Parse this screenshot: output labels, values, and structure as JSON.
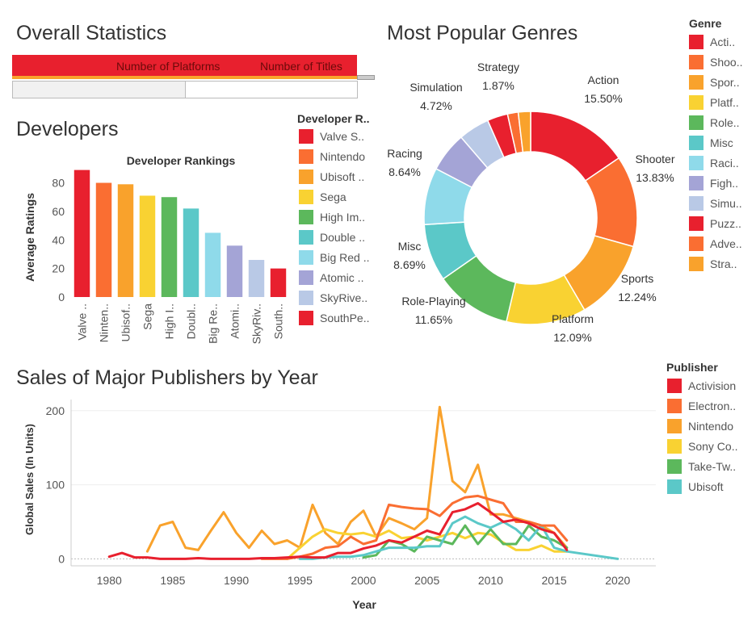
{
  "overall": {
    "title": "Overall Statistics",
    "col_platforms": "Number of Platforms",
    "col_titles": "Number of Titles"
  },
  "developers": {
    "title": "Developers",
    "legend_title": "Developer R..",
    "legend": [
      {
        "label": "Valve S..",
        "color": "#e8202e"
      },
      {
        "label": "Nintendo",
        "color": "#fa6e32"
      },
      {
        "label": "Ubisoft ..",
        "color": "#f9a22c"
      },
      {
        "label": "Sega",
        "color": "#f9d232"
      },
      {
        "label": "High Im..",
        "color": "#5cb85c"
      },
      {
        "label": "Double ..",
        "color": "#5bc8c8"
      },
      {
        "label": "Big Red ..",
        "color": "#8fdaea"
      },
      {
        "label": "Atomic ..",
        "color": "#a4a4d6"
      },
      {
        "label": "SkyRive..",
        "color": "#b9c9e6"
      },
      {
        "label": "SouthPe..",
        "color": "#e8202e"
      }
    ]
  },
  "genres": {
    "title": "Most Popular Genres",
    "legend_title": "Genre",
    "legend": [
      {
        "label": "Acti..",
        "color": "#e8202e"
      },
      {
        "label": "Shoo..",
        "color": "#fa6e32"
      },
      {
        "label": "Spor..",
        "color": "#f9a22c"
      },
      {
        "label": "Platf..",
        "color": "#f9d232"
      },
      {
        "label": "Role..",
        "color": "#5cb85c"
      },
      {
        "label": "Misc",
        "color": "#5bc8c8"
      },
      {
        "label": "Raci..",
        "color": "#8fdaea"
      },
      {
        "label": "Figh..",
        "color": "#a4a4d6"
      },
      {
        "label": "Simu..",
        "color": "#b9c9e6"
      },
      {
        "label": "Puzz..",
        "color": "#e8202e"
      },
      {
        "label": "Adve..",
        "color": "#fa6e32"
      },
      {
        "label": "Stra..",
        "color": "#f9a22c"
      }
    ]
  },
  "publishers": {
    "title": "Sales of Major Publishers by Year",
    "legend_title": "Publisher",
    "legend": [
      {
        "label": "Activision",
        "color": "#e8202e"
      },
      {
        "label": "Electron..",
        "color": "#fa6e32"
      },
      {
        "label": "Nintendo",
        "color": "#f9a22c"
      },
      {
        "label": "Sony Co..",
        "color": "#f9d232"
      },
      {
        "label": "Take-Tw..",
        "color": "#5cb85c"
      },
      {
        "label": "Ubisoft",
        "color": "#5bc8c8"
      }
    ]
  },
  "chart_data": [
    {
      "type": "bar",
      "title": "Developer Rankings",
      "ylabel": "Average Ratings",
      "xlabel": "",
      "ylim": [
        0,
        95
      ],
      "yticks": [
        0,
        20,
        40,
        60,
        80
      ],
      "categories": [
        "Valve ..",
        "Ninten..",
        "Ubisof..",
        "Sega",
        "High I..",
        "Doubl..",
        "Big Re..",
        "Atomi..",
        "SkyRiv..",
        "South.."
      ],
      "values": [
        89,
        80,
        79,
        71,
        70,
        62,
        45,
        36,
        26,
        20
      ],
      "colors": [
        "#e8202e",
        "#fa6e32",
        "#f9a22c",
        "#f9d232",
        "#5cb85c",
        "#5bc8c8",
        "#8fdaea",
        "#a4a4d6",
        "#b9c9e6",
        "#e8202e"
      ]
    },
    {
      "type": "pie",
      "title": "",
      "categories": [
        "Action",
        "Shooter",
        "Sports",
        "Platform",
        "Role-Playing",
        "Misc",
        "Racing",
        "Fighting",
        "Simulation",
        "Puzzle",
        "Adventure",
        "Strategy"
      ],
      "values": [
        15.5,
        13.83,
        12.24,
        12.09,
        11.65,
        8.69,
        8.64,
        6.04,
        4.72,
        3.11,
        1.62,
        1.87
      ],
      "labels": [
        {
          "name": "Action",
          "pct": "15.50%"
        },
        {
          "name": "Shooter",
          "pct": "13.83%"
        },
        {
          "name": "Sports",
          "pct": "12.24%"
        },
        {
          "name": "Platform",
          "pct": "12.09%"
        },
        {
          "name": "Role-Playing",
          "pct": "11.65%"
        },
        {
          "name": "Misc",
          "pct": "8.69%"
        },
        {
          "name": "Racing",
          "pct": "8.64%"
        },
        {
          "name": "Simulation",
          "pct": "4.72%"
        },
        {
          "name": "Strategy",
          "pct": "1.87%"
        }
      ],
      "colors": [
        "#e8202e",
        "#fa6e32",
        "#f9a22c",
        "#f9d232",
        "#5cb85c",
        "#5bc8c8",
        "#8fdaea",
        "#a4a4d6",
        "#b9c9e6",
        "#e8202e",
        "#fa6e32",
        "#f9a22c"
      ]
    },
    {
      "type": "line",
      "title": "",
      "xlabel": "Year",
      "ylabel": "Global Sales (In Units)",
      "xlim": [
        1977,
        2023
      ],
      "ylim": [
        -5,
        215
      ],
      "xticks": [
        1980,
        1985,
        1990,
        1995,
        2000,
        2005,
        2010,
        2015,
        2020
      ],
      "yticks": [
        0,
        100,
        200
      ],
      "series": [
        {
          "name": "Nintendo",
          "color": "#f9a22c",
          "x": [
            1983,
            1984,
            1985,
            1986,
            1987,
            1988,
            1989,
            1990,
            1991,
            1992,
            1993,
            1994,
            1995,
            1996,
            1997,
            1998,
            1999,
            2000,
            2001,
            2002,
            2003,
            2004,
            2005,
            2006,
            2007,
            2008,
            2009,
            2010,
            2011,
            2012,
            2013,
            2014,
            2015,
            2016
          ],
          "y": [
            10,
            45,
            50,
            15,
            12,
            38,
            63,
            35,
            15,
            38,
            20,
            25,
            15,
            73,
            35,
            20,
            50,
            65,
            30,
            55,
            48,
            40,
            55,
            205,
            105,
            90,
            127,
            60,
            60,
            55,
            50,
            45,
            35,
            15
          ]
        },
        {
          "name": "Sony Co..",
          "color": "#f9d232",
          "x": [
            1994,
            1995,
            1996,
            1997,
            1998,
            1999,
            2000,
            2001,
            2002,
            2003,
            2004,
            2005,
            2006,
            2007,
            2008,
            2009,
            2010,
            2011,
            2012,
            2013,
            2014,
            2015,
            2016
          ],
          "y": [
            0,
            15,
            30,
            40,
            35,
            33,
            35,
            30,
            38,
            28,
            30,
            25,
            30,
            35,
            28,
            35,
            33,
            22,
            12,
            12,
            18,
            10,
            10
          ]
        },
        {
          "name": "Take-Tw..",
          "color": "#5cb85c",
          "x": [
            2000,
            2001,
            2002,
            2003,
            2004,
            2005,
            2006,
            2007,
            2008,
            2009,
            2010,
            2011,
            2012,
            2013,
            2014,
            2015,
            2016
          ],
          "y": [
            2,
            5,
            25,
            20,
            10,
            30,
            25,
            20,
            45,
            20,
            40,
            20,
            20,
            45,
            30,
            25,
            15
          ]
        },
        {
          "name": "Ubisoft",
          "color": "#5bc8c8",
          "x": [
            1995,
            1996,
            1997,
            1998,
            1999,
            2000,
            2001,
            2002,
            2003,
            2004,
            2005,
            2006,
            2007,
            2008,
            2009,
            2010,
            2011,
            2012,
            2013,
            2014,
            2015,
            2016,
            2020
          ],
          "y": [
            0,
            0,
            2,
            3,
            3,
            5,
            10,
            15,
            15,
            15,
            17,
            17,
            48,
            57,
            48,
            42,
            50,
            40,
            25,
            45,
            15,
            10,
            0
          ]
        },
        {
          "name": "Electron..",
          "color": "#fa6e32",
          "x": [
            1992,
            1993,
            1994,
            1995,
            1996,
            1997,
            1998,
            1999,
            2000,
            2001,
            2002,
            2003,
            2004,
            2005,
            2006,
            2007,
            2008,
            2009,
            2010,
            2011,
            2012,
            2013,
            2014,
            2015,
            2016
          ],
          "y": [
            0,
            0,
            0,
            3,
            7,
            15,
            17,
            30,
            20,
            25,
            73,
            70,
            68,
            67,
            58,
            75,
            83,
            85,
            80,
            75,
            50,
            50,
            45,
            45,
            25
          ]
        },
        {
          "name": "Activision",
          "color": "#e8202e",
          "x": [
            1980,
            1981,
            1982,
            1983,
            1984,
            1985,
            1986,
            1987,
            1988,
            1989,
            1990,
            1991,
            1992,
            1993,
            1994,
            1995,
            1996,
            1997,
            1998,
            1999,
            2000,
            2001,
            2002,
            2003,
            2004,
            2005,
            2006,
            2007,
            2008,
            2009,
            2010,
            2011,
            2012,
            2013,
            2014,
            2015,
            2016
          ],
          "y": [
            3,
            8,
            2,
            2,
            0,
            0,
            0,
            1,
            0,
            0,
            0,
            0,
            1,
            1,
            2,
            3,
            2,
            2,
            8,
            8,
            14,
            18,
            25,
            22,
            30,
            38,
            33,
            63,
            67,
            75,
            63,
            50,
            53,
            48,
            40,
            35,
            12
          ]
        }
      ]
    }
  ]
}
